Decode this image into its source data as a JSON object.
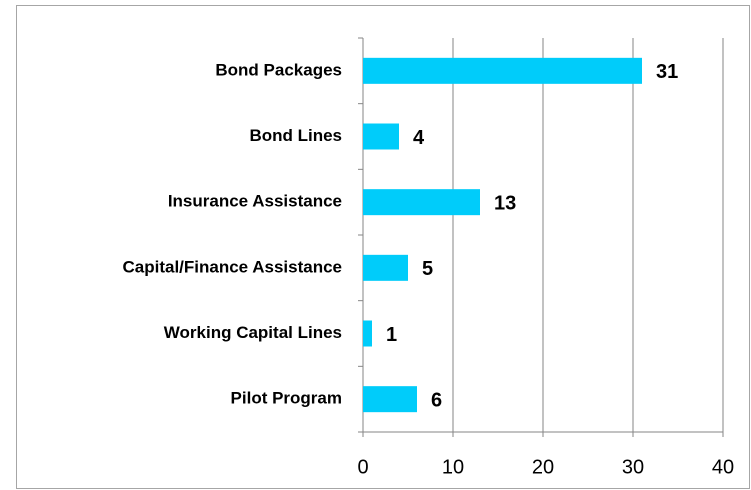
{
  "chart_data": {
    "type": "bar",
    "orientation": "horizontal",
    "categories": [
      "Bond Packages",
      "Bond Lines",
      "Insurance Assistance",
      "Capital/Finance Assistance",
      "Working Capital Lines",
      "Pilot Program"
    ],
    "values": [
      31,
      4,
      13,
      5,
      1,
      6
    ],
    "color": "#00ccfa",
    "xlim": [
      0,
      40
    ],
    "xticks": [
      0,
      10,
      20,
      30,
      40
    ],
    "grid": true
  }
}
